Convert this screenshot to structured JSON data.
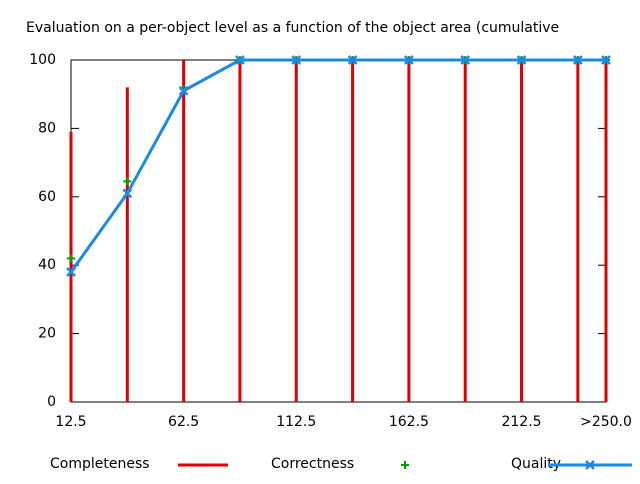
{
  "chart_data": {
    "type": "combo",
    "title": "Evaluation on a per-object level as a function of the object area (cumulative",
    "x": [
      12.5,
      37.5,
      62.5,
      87.5,
      112.5,
      137.5,
      162.5,
      187.5,
      212.5,
      237.5,
      250
    ],
    "xlim": [
      12.5,
      250
    ],
    "xticks": [
      12.5,
      62.5,
      112.5,
      162.5,
      212.5,
      {
        "value": 250,
        "label": ">250.0"
      }
    ],
    "ylim": [
      0,
      100
    ],
    "yticks": [
      0,
      20,
      40,
      60,
      80,
      100
    ],
    "series": [
      {
        "name": "Completeness",
        "color": "#e00000",
        "style": "impulses",
        "values": [
          79,
          92,
          100,
          100,
          100,
          100,
          100,
          100,
          100,
          100,
          100
        ]
      },
      {
        "name": "Correctness",
        "color": "#00a000",
        "style": "points",
        "values": [
          42,
          64.5,
          91.5,
          100,
          100,
          100,
          100,
          100,
          100,
          100,
          100
        ]
      },
      {
        "name": "Quality",
        "color": "#1e88e5",
        "style": "linespoints",
        "values": [
          38,
          61,
          91,
          100,
          100,
          100,
          100,
          100,
          100,
          100,
          100
        ]
      }
    ]
  }
}
